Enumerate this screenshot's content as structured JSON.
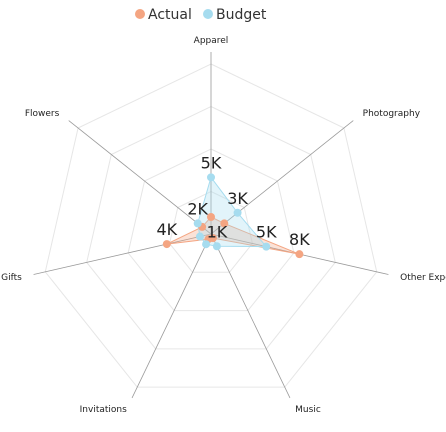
{
  "chart_data": {
    "type": "radar",
    "categories": [
      "Apparel",
      "Photography",
      "Other Expenses",
      "Music",
      "Invitations",
      "Gifts",
      "Flowers"
    ],
    "series": [
      {
        "name": "Actual",
        "color": "#f4a582",
        "values": [
          1.5,
          1.5,
          8,
          0.4,
          0.5,
          4,
          1
        ],
        "labels": [
          "",
          "",
          "8K",
          "",
          "",
          "4K",
          ""
        ]
      },
      {
        "name": "Budget",
        "color": "#a6dcef",
        "values": [
          5,
          3,
          5,
          1.2,
          1,
          1,
          1.5
        ],
        "labels": [
          "5K",
          "3K",
          "5K",
          "1K",
          "",
          "",
          "2K"
        ]
      }
    ],
    "scale_max": 15,
    "legend_position": "top"
  }
}
